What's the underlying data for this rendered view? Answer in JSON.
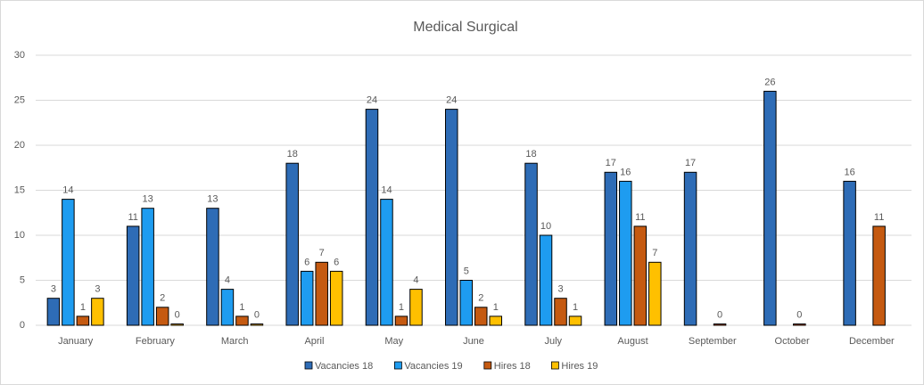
{
  "chart_data": {
    "type": "bar",
    "title": "Medical Surgical",
    "categories": [
      "January",
      "February",
      "March",
      "April",
      "May",
      "June",
      "July",
      "August",
      "September",
      "October",
      "December"
    ],
    "series": [
      {
        "name": "Vacancies 18",
        "color": "#2e6cb6",
        "values": [
          3,
          11,
          13,
          18,
          24,
          24,
          18,
          17,
          17,
          26,
          16
        ]
      },
      {
        "name": "Vacancies 19",
        "color": "#1e9cf0",
        "values": [
          14,
          13,
          4,
          6,
          14,
          5,
          10,
          16,
          null,
          null,
          null
        ]
      },
      {
        "name": "Hires 18",
        "color": "#c55a11",
        "values": [
          1,
          2,
          1,
          7,
          1,
          2,
          3,
          11,
          0,
          0,
          11
        ]
      },
      {
        "name": "Hires 19",
        "color": "#ffc000",
        "values": [
          3,
          0,
          0,
          6,
          4,
          1,
          1,
          7,
          null,
          null,
          null
        ]
      }
    ],
    "ylim": [
      0,
      30
    ],
    "yticks": [
      0,
      5,
      10,
      15,
      20,
      25,
      30
    ],
    "grid": true,
    "legend": "bottom"
  }
}
